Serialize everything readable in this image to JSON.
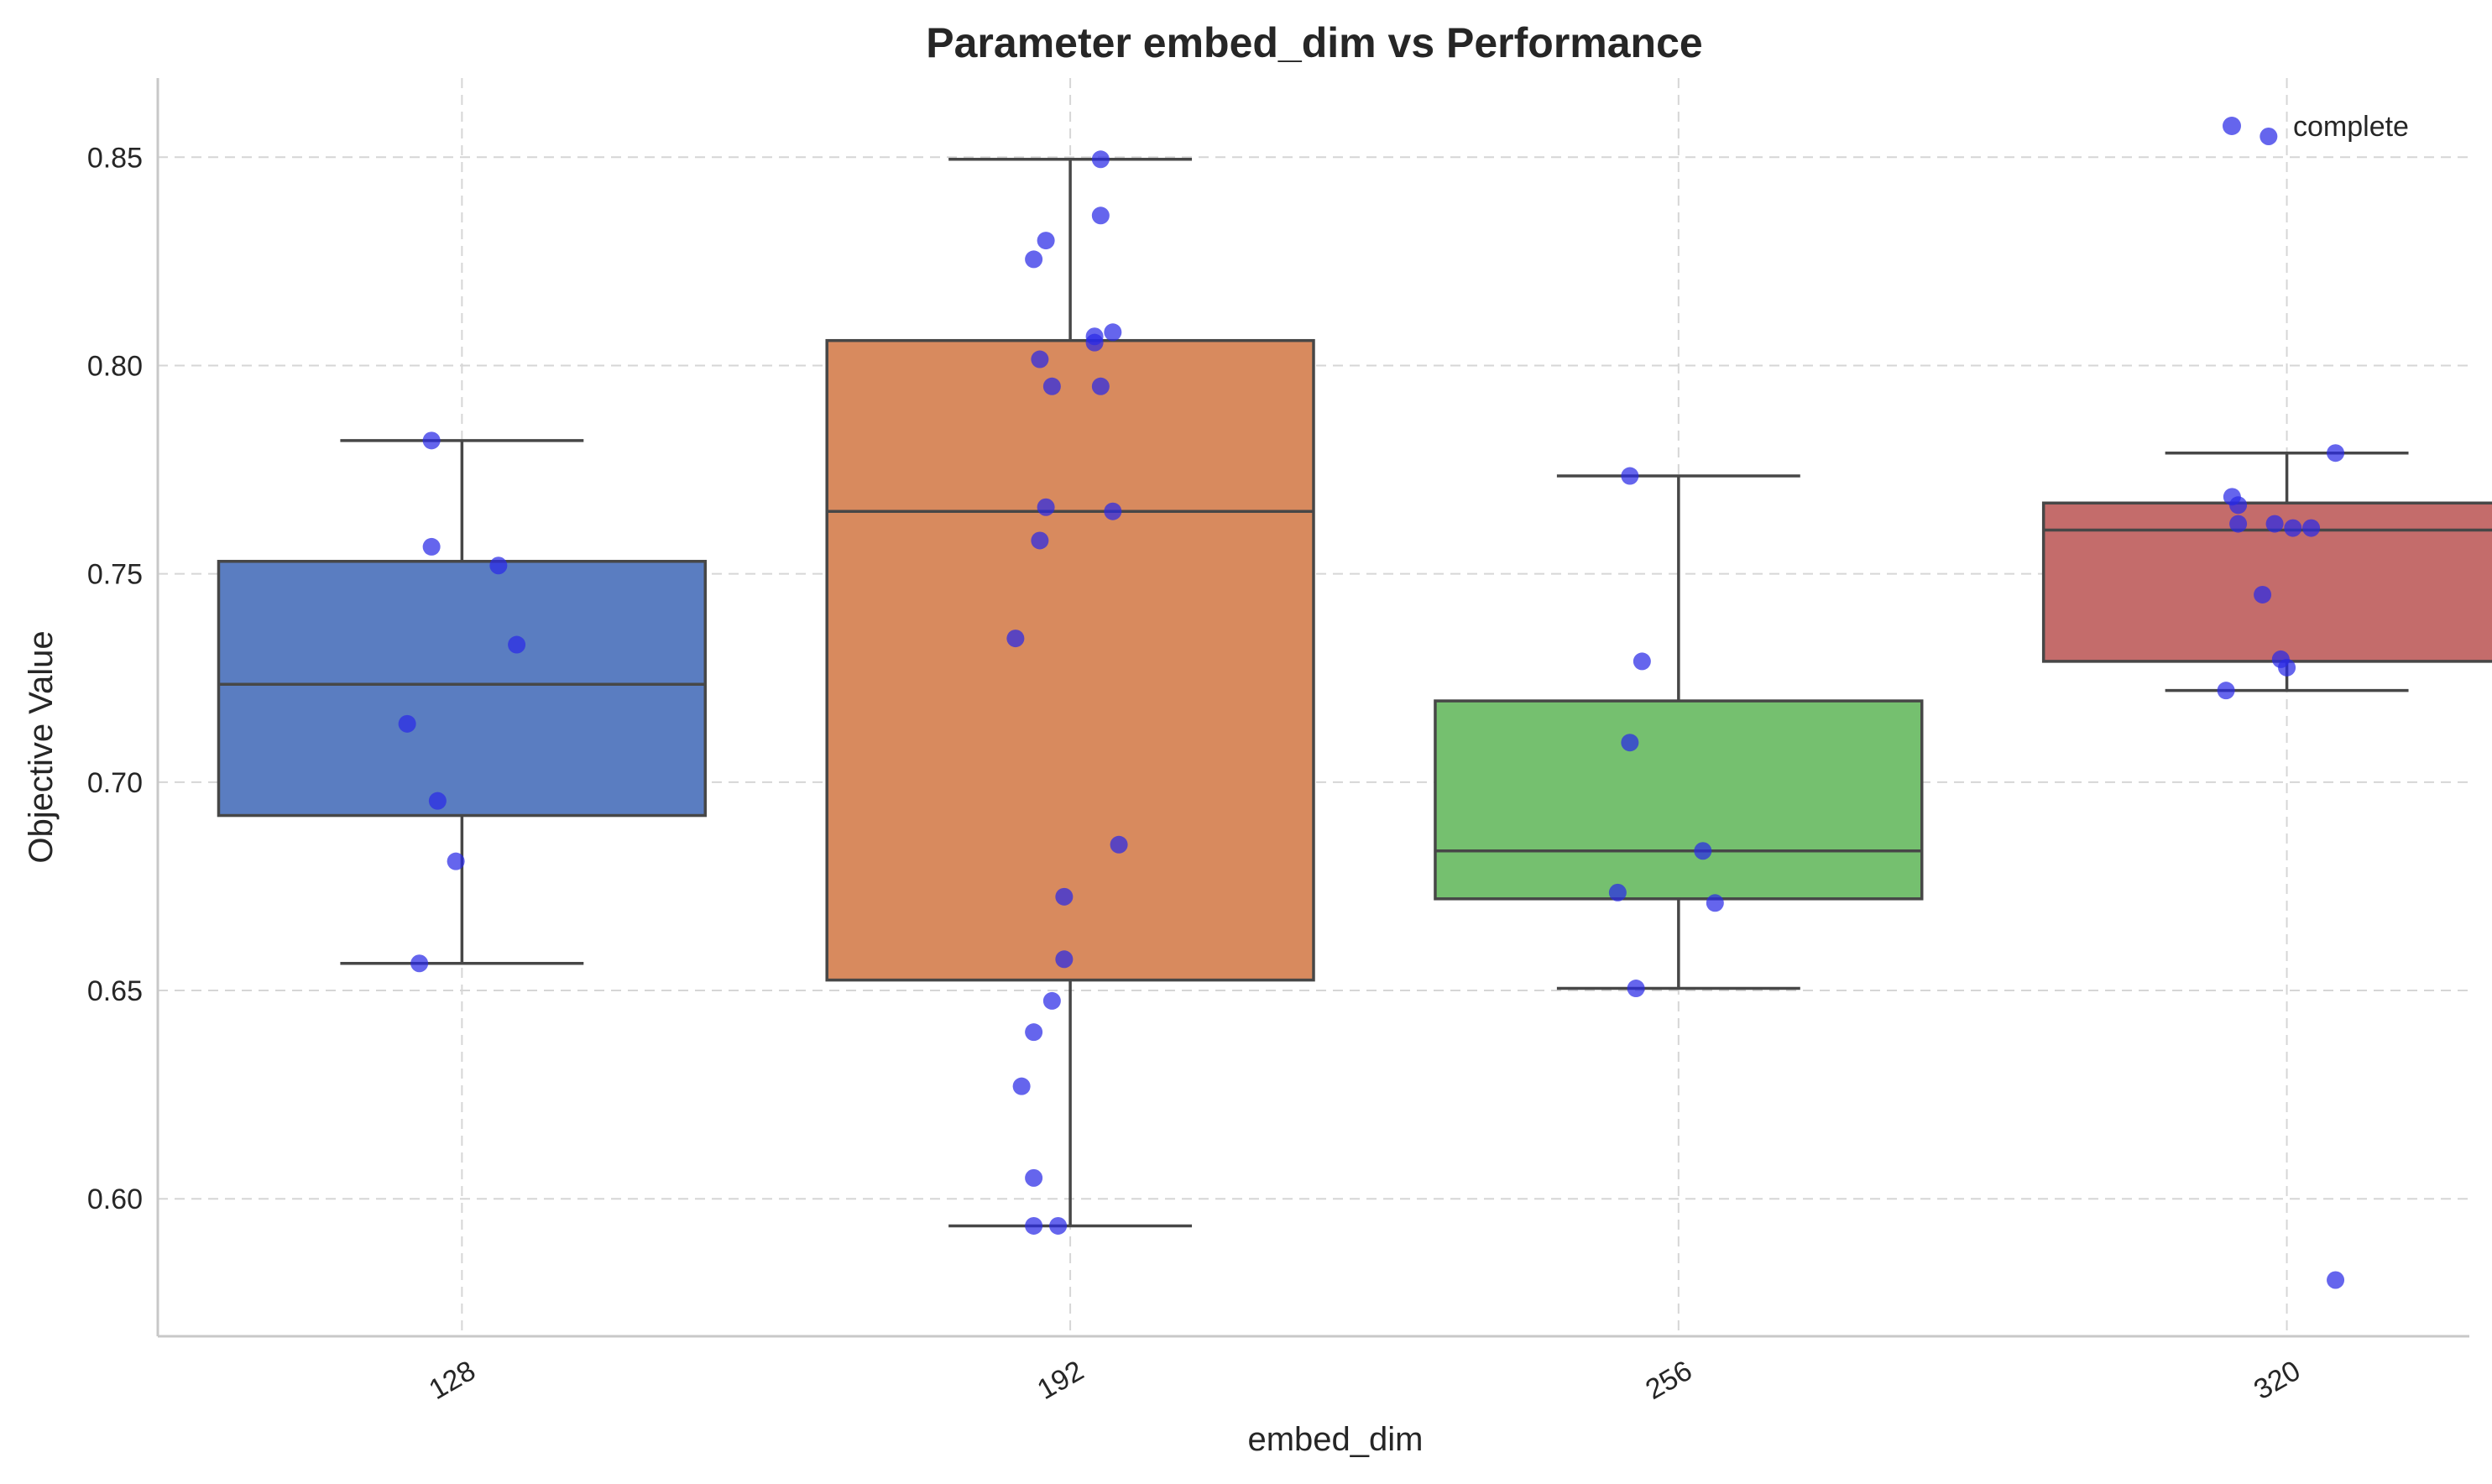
{
  "chart_data": {
    "type": "box",
    "title": "Parameter embed_dim vs Performance",
    "xlabel": "embed_dim",
    "ylabel": "Objective Value",
    "categories": [
      "128",
      "192",
      "256",
      "320"
    ],
    "ylim": [
      0.567,
      0.869
    ],
    "yticks": [
      0.6,
      0.65,
      0.7,
      0.75,
      0.8,
      0.85
    ],
    "grid": true,
    "legend": {
      "position": "top-right",
      "entries": [
        "complete"
      ]
    },
    "colors": {
      "boxes": [
        "#5a7dc1",
        "#d88a5e",
        "#75c06f",
        "#c46c6b"
      ],
      "points": "#2a2ae6"
    },
    "boxes": [
      {
        "category": "128",
        "whisker_low": 0.6565,
        "q1": 0.692,
        "median": 0.7235,
        "q3": 0.753,
        "whisker_high": 0.782
      },
      {
        "category": "192",
        "whisker_low": 0.5935,
        "q1": 0.6525,
        "median": 0.765,
        "q3": 0.806,
        "whisker_high": 0.8495
      },
      {
        "category": "256",
        "whisker_low": 0.6505,
        "q1": 0.672,
        "median": 0.6835,
        "q3": 0.7195,
        "whisker_high": 0.7735
      },
      {
        "category": "320",
        "whisker_low": 0.722,
        "q1": 0.729,
        "median": 0.7605,
        "q3": 0.767,
        "whisker_high": 0.779
      }
    ],
    "series": [
      {
        "name": "complete",
        "points": [
          {
            "category": "128",
            "jitter": -0.05,
            "y": 0.782
          },
          {
            "category": "128",
            "jitter": -0.05,
            "y": 0.7565
          },
          {
            "category": "128",
            "jitter": 0.06,
            "y": 0.752
          },
          {
            "category": "128",
            "jitter": 0.09,
            "y": 0.733
          },
          {
            "category": "128",
            "jitter": -0.09,
            "y": 0.714
          },
          {
            "category": "128",
            "jitter": -0.04,
            "y": 0.6955
          },
          {
            "category": "128",
            "jitter": -0.01,
            "y": 0.681
          },
          {
            "category": "128",
            "jitter": -0.07,
            "y": 0.6565
          },
          {
            "category": "192",
            "jitter": 0.05,
            "y": 0.8495
          },
          {
            "category": "192",
            "jitter": 0.05,
            "y": 0.836
          },
          {
            "category": "192",
            "jitter": -0.04,
            "y": 0.83
          },
          {
            "category": "192",
            "jitter": -0.06,
            "y": 0.8255
          },
          {
            "category": "192",
            "jitter": 0.07,
            "y": 0.808
          },
          {
            "category": "192",
            "jitter": 0.04,
            "y": 0.807
          },
          {
            "category": "192",
            "jitter": 0.04,
            "y": 0.8055
          },
          {
            "category": "192",
            "jitter": -0.05,
            "y": 0.8015
          },
          {
            "category": "192",
            "jitter": -0.03,
            "y": 0.795
          },
          {
            "category": "192",
            "jitter": 0.05,
            "y": 0.795
          },
          {
            "category": "192",
            "jitter": -0.04,
            "y": 0.766
          },
          {
            "category": "192",
            "jitter": 0.07,
            "y": 0.765
          },
          {
            "category": "192",
            "jitter": -0.05,
            "y": 0.758
          },
          {
            "category": "192",
            "jitter": -0.09,
            "y": 0.7345
          },
          {
            "category": "192",
            "jitter": 0.08,
            "y": 0.685
          },
          {
            "category": "192",
            "jitter": -0.01,
            "y": 0.6725
          },
          {
            "category": "192",
            "jitter": -0.01,
            "y": 0.6575
          },
          {
            "category": "192",
            "jitter": -0.03,
            "y": 0.6475
          },
          {
            "category": "192",
            "jitter": -0.06,
            "y": 0.64
          },
          {
            "category": "192",
            "jitter": -0.08,
            "y": 0.627
          },
          {
            "category": "192",
            "jitter": -0.06,
            "y": 0.605
          },
          {
            "category": "192",
            "jitter": -0.06,
            "y": 0.5935
          },
          {
            "category": "192",
            "jitter": -0.02,
            "y": 0.5935
          },
          {
            "category": "256",
            "jitter": -0.08,
            "y": 0.7735
          },
          {
            "category": "256",
            "jitter": -0.06,
            "y": 0.729
          },
          {
            "category": "256",
            "jitter": -0.08,
            "y": 0.7095
          },
          {
            "category": "256",
            "jitter": 0.04,
            "y": 0.6835
          },
          {
            "category": "256",
            "jitter": -0.1,
            "y": 0.6735
          },
          {
            "category": "256",
            "jitter": 0.06,
            "y": 0.671
          },
          {
            "category": "256",
            "jitter": -0.07,
            "y": 0.6505
          },
          {
            "category": "320",
            "jitter": -0.03,
            "y": 0.855
          },
          {
            "category": "320",
            "jitter": 0.08,
            "y": 0.779
          },
          {
            "category": "320",
            "jitter": -0.09,
            "y": 0.7685
          },
          {
            "category": "320",
            "jitter": -0.08,
            "y": 0.7665
          },
          {
            "category": "320",
            "jitter": -0.08,
            "y": 0.762
          },
          {
            "category": "320",
            "jitter": -0.02,
            "y": 0.762
          },
          {
            "category": "320",
            "jitter": 0.01,
            "y": 0.761
          },
          {
            "category": "320",
            "jitter": 0.04,
            "y": 0.761
          },
          {
            "category": "320",
            "jitter": -0.04,
            "y": 0.745
          },
          {
            "category": "320",
            "jitter": -0.01,
            "y": 0.7295
          },
          {
            "category": "320",
            "jitter": 0.0,
            "y": 0.7275
          },
          {
            "category": "320",
            "jitter": -0.1,
            "y": 0.722
          },
          {
            "category": "320",
            "jitter": 0.08,
            "y": 0.5805
          }
        ]
      }
    ]
  }
}
